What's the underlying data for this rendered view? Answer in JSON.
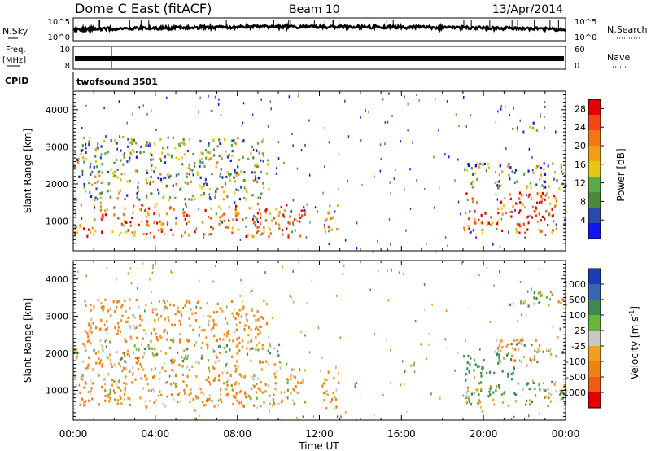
{
  "header": {
    "station": "Dome C East (fitACF)",
    "beam": "Beam 10",
    "date": "13/Apr/2014"
  },
  "ancillary": {
    "nsky_label": "N.Sky",
    "nsearch_label": "N.Search",
    "noise_ticks": [
      "10^5",
      "10^0"
    ],
    "freq_label_1": "Freq.",
    "freq_label_2": "[MHz]",
    "freq_ticks": [
      "10",
      "8"
    ],
    "nave_label": "Nave",
    "nave_ticks": [
      "60",
      "0"
    ],
    "cpid_label": "CPID",
    "cpid_value": "twofsound 3501"
  },
  "colors": {
    "power": [
      "#1414f0",
      "#2a4aa8",
      "#4a8a3a",
      "#5aaa48",
      "#e4c814",
      "#f0a014",
      "#f07814",
      "#f04814",
      "#e40000"
    ],
    "velocity": [
      "#1e3cb4",
      "#3a64b4",
      "#3c8a50",
      "#6ab43c",
      "#c8c8c8",
      "#f0a01e",
      "#f08214",
      "#f05a14",
      "#e40000"
    ]
  },
  "chart_data": [
    {
      "type": "heatmap",
      "title": "",
      "xlabel": "Time UT",
      "ylabel": "Slant Range [km]",
      "x_ticks": [
        "00:00",
        "04:00",
        "08:00",
        "12:00",
        "16:00",
        "20:00",
        "00:00"
      ],
      "xlim_hours": [
        0,
        24
      ],
      "y_ticks": [
        1000,
        2000,
        3000,
        4000
      ],
      "ylim_km": [
        200,
        4500
      ],
      "colorbar": {
        "label": "Power [dB]",
        "ticks": [
          4,
          8,
          12,
          16,
          20,
          24,
          28
        ],
        "range": [
          0,
          30
        ]
      },
      "echo_regions": [
        {
          "t0": 0.0,
          "t1": 11.3,
          "r0": 600,
          "r1": 1500,
          "value": 22
        },
        {
          "t0": 0.0,
          "t1": 9.5,
          "r0": 1600,
          "r1": 3300,
          "value": 12
        },
        {
          "t0": 12.2,
          "t1": 12.9,
          "r0": 600,
          "r1": 1500,
          "value": 20
        },
        {
          "t0": 19.0,
          "t1": 24.0,
          "r0": 700,
          "r1": 1800,
          "value": 24
        },
        {
          "t0": 19.0,
          "t1": 24.0,
          "r0": 1900,
          "r1": 2600,
          "value": 10
        },
        {
          "t0": 21.3,
          "t1": 22.6,
          "r0": 3400,
          "r1": 3700,
          "value": 6
        }
      ]
    },
    {
      "type": "heatmap",
      "title": "",
      "xlabel": "Time UT",
      "ylabel": "Slant Range [km]",
      "x_ticks": [
        "00:00",
        "04:00",
        "08:00",
        "12:00",
        "16:00",
        "20:00",
        "00:00"
      ],
      "xlim_hours": [
        0,
        24
      ],
      "y_ticks": [
        1000,
        2000,
        3000,
        4000
      ],
      "ylim_km": [
        200,
        4500
      ],
      "colorbar": {
        "label": "Velocity [m s",
        "label_sup": "-1",
        "label_end": "]",
        "ticks": [
          "1000",
          "500",
          "100",
          "25",
          "-25",
          "-100",
          "-500",
          "-1000"
        ]
      },
      "echo_regions": [
        {
          "t0": 0.0,
          "t1": 11.3,
          "r0": 600,
          "r1": 1800,
          "value": -150
        },
        {
          "t0": 0.0,
          "t1": 10.0,
          "r0": 1800,
          "r1": 2300,
          "value": 0
        },
        {
          "t0": 0.5,
          "t1": 9.5,
          "r0": 2300,
          "r1": 3500,
          "value": -200
        },
        {
          "t0": 12.1,
          "t1": 12.9,
          "r0": 500,
          "r1": 1600,
          "value": -150
        },
        {
          "t0": 19.0,
          "t1": 24.0,
          "r0": 600,
          "r1": 1300,
          "value": 60
        },
        {
          "t0": 19.0,
          "t1": 21.5,
          "r0": 1300,
          "r1": 2000,
          "value": 300
        },
        {
          "t0": 20.5,
          "t1": 24.0,
          "r0": 1800,
          "r1": 2400,
          "value": 0
        },
        {
          "t0": 21.0,
          "t1": 24.0,
          "r0": 3300,
          "r1": 3700,
          "value": 0
        }
      ]
    }
  ]
}
